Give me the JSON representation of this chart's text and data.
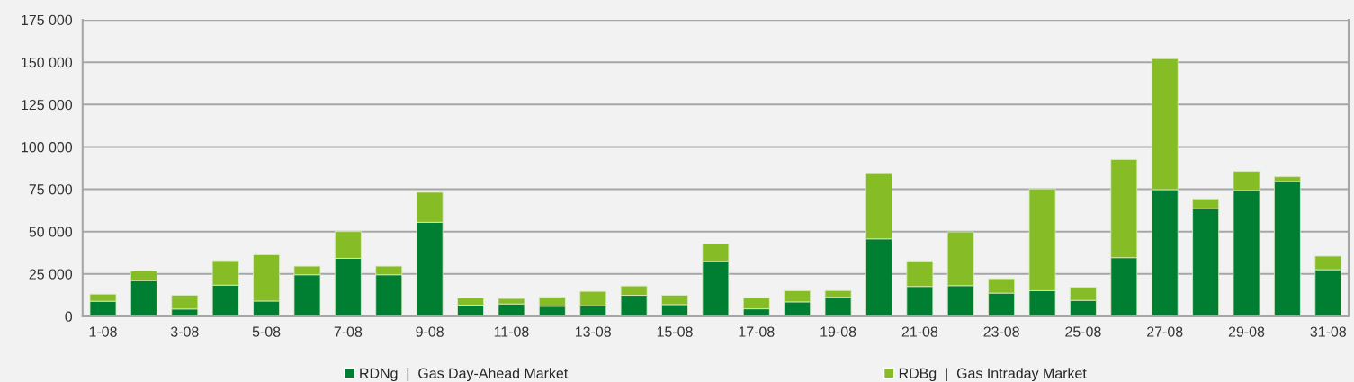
{
  "chart_data": {
    "type": "bar",
    "stacked": true,
    "categories": [
      "1-08",
      null,
      "3-08",
      null,
      "5-08",
      null,
      "7-08",
      null,
      "9-08",
      null,
      "11-08",
      null,
      "13-08",
      null,
      "15-08",
      null,
      "17-08",
      null,
      "19-08",
      null,
      "21-08",
      null,
      "23-08",
      null,
      "25-08",
      null,
      "27-08",
      null,
      "29-08",
      null,
      "31-08"
    ],
    "series": [
      {
        "name": "RDNg  |  Gas Day-Ahead Market",
        "color": "#007f33",
        "values": [
          8900,
          21100,
          4300,
          18400,
          9000,
          24500,
          34200,
          24500,
          55500,
          6600,
          7300,
          5900,
          6200,
          12400,
          6900,
          32400,
          4400,
          8500,
          11200,
          45700,
          17600,
          18100,
          13700,
          15100,
          9400,
          34600,
          74800,
          63500,
          74300,
          79600,
          27500
        ]
      },
      {
        "name": "RDBg  |  Gas Intraday Market",
        "color": "#86bc25",
        "values": [
          4200,
          5700,
          8100,
          14400,
          27300,
          5100,
          15800,
          5100,
          17700,
          4200,
          3200,
          5300,
          8500,
          5500,
          5500,
          10300,
          6600,
          6600,
          4000,
          38500,
          15000,
          31700,
          8500,
          60100,
          7800,
          58000,
          77300,
          5800,
          11300,
          2800,
          8000
        ]
      }
    ],
    "ylim": [
      0,
      175000
    ],
    "yticks": [
      0,
      {
        "value": 25000,
        "label": "25 000"
      },
      {
        "value": 50000,
        "label": "50 000"
      },
      {
        "value": 75000,
        "label": "75 000"
      },
      {
        "value": 100000,
        "label": "100 000"
      },
      {
        "value": 125000,
        "label": "125 000"
      },
      {
        "value": 150000,
        "label": "150 000"
      },
      {
        "value": 175000,
        "label": "175 000"
      }
    ],
    "grid": "y",
    "legend": "bottom"
  }
}
